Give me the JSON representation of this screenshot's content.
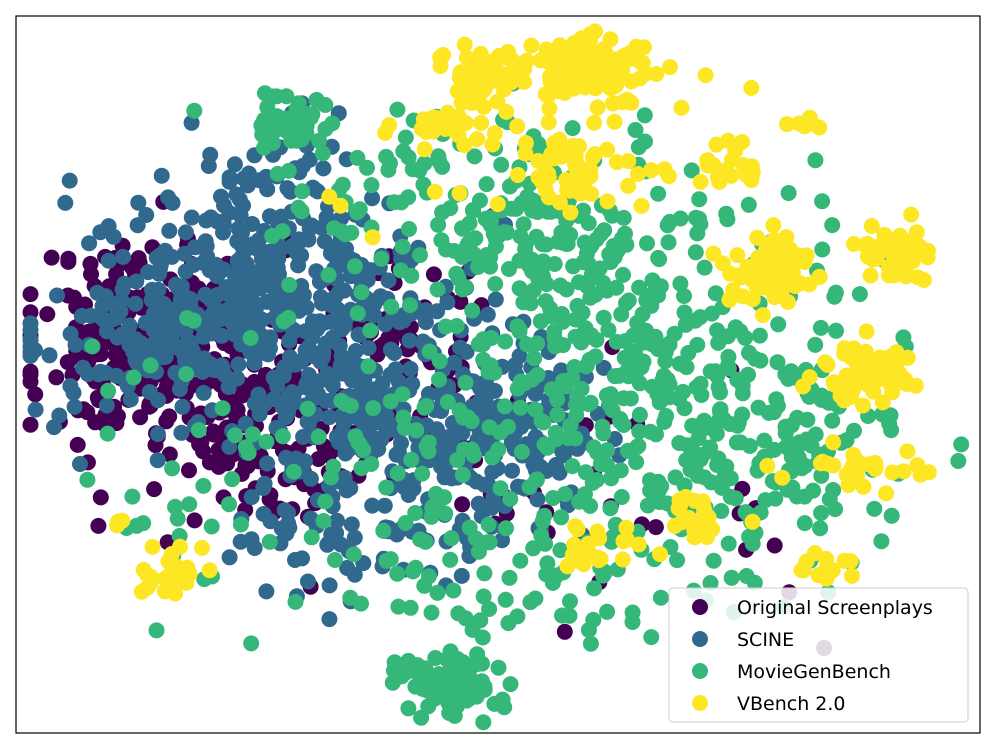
{
  "chart_data": {
    "type": "scatter",
    "title": "",
    "xlabel": "",
    "ylabel": "",
    "axes_ticks": false,
    "grid": false,
    "legend_position": "lower-right",
    "xlim": [
      0,
      100
    ],
    "ylim": [
      0,
      100
    ],
    "series": [
      {
        "name": "Original Screenplays",
        "color": "#440154",
        "clusters": [
          {
            "cx": 14,
            "cy": 55,
            "sx": 6,
            "sy": 7,
            "n": 230,
            "seed": 11
          },
          {
            "cx": 26,
            "cy": 42,
            "sx": 7,
            "sy": 7,
            "n": 150,
            "seed": 12
          },
          {
            "cx": 38,
            "cy": 54,
            "sx": 6,
            "sy": 6,
            "n": 60,
            "seed": 13
          },
          {
            "cx": 58,
            "cy": 40,
            "sx": 10,
            "sy": 8,
            "n": 25,
            "seed": 14
          },
          {
            "cx": 70,
            "cy": 30,
            "sx": 12,
            "sy": 8,
            "n": 15,
            "seed": 15
          }
        ]
      },
      {
        "name": "SCINE",
        "color": "#31688e",
        "clusters": [
          {
            "cx": 26,
            "cy": 60,
            "sx": 10,
            "sy": 8,
            "n": 420,
            "seed": 21
          },
          {
            "cx": 35,
            "cy": 45,
            "sx": 6,
            "sy": 9,
            "n": 160,
            "seed": 22
          },
          {
            "cx": 50,
            "cy": 42,
            "sx": 5,
            "sy": 6,
            "n": 180,
            "seed": 23
          },
          {
            "cx": 12,
            "cy": 52,
            "sx": 5,
            "sy": 6,
            "n": 70,
            "seed": 24
          },
          {
            "cx": 36,
            "cy": 27,
            "sx": 7,
            "sy": 4,
            "n": 60,
            "seed": 25
          },
          {
            "cx": 28,
            "cy": 80,
            "sx": 4,
            "sy": 4,
            "n": 30,
            "seed": 26
          }
        ]
      },
      {
        "name": "MovieGenBench",
        "color": "#35b779",
        "clusters": [
          {
            "cx": 62,
            "cy": 48,
            "sx": 13,
            "sy": 13,
            "n": 420,
            "seed": 31
          },
          {
            "cx": 56,
            "cy": 70,
            "sx": 8,
            "sy": 6,
            "n": 110,
            "seed": 32
          },
          {
            "cx": 42,
            "cy": 75,
            "sx": 8,
            "sy": 6,
            "n": 80,
            "seed": 33
          },
          {
            "cx": 28,
            "cy": 85,
            "sx": 2,
            "sy": 2.2,
            "n": 45,
            "seed": 34
          },
          {
            "cx": 45,
            "cy": 7,
            "sx": 2.8,
            "sy": 2.2,
            "n": 90,
            "seed": 35
          },
          {
            "cx": 79,
            "cy": 42,
            "sx": 7,
            "sy": 10,
            "n": 90,
            "seed": 36
          },
          {
            "cx": 52,
            "cy": 22,
            "sx": 8,
            "sy": 5,
            "n": 70,
            "seed": 37
          },
          {
            "cx": 24,
            "cy": 40,
            "sx": 10,
            "sy": 10,
            "n": 60,
            "seed": 38
          }
        ]
      },
      {
        "name": "VBench 2.0",
        "color": "#fde725",
        "clusters": [
          {
            "cx": 60,
            "cy": 93,
            "sx": 3,
            "sy": 2,
            "n": 110,
            "seed": 41
          },
          {
            "cx": 48,
            "cy": 92,
            "sx": 2.5,
            "sy": 2,
            "n": 60,
            "seed": 42
          },
          {
            "cx": 78,
            "cy": 65,
            "sx": 2.5,
            "sy": 2.5,
            "n": 80,
            "seed": 43
          },
          {
            "cx": 88,
            "cy": 50,
            "sx": 2.5,
            "sy": 2.5,
            "n": 70,
            "seed": 44
          },
          {
            "cx": 91,
            "cy": 67,
            "sx": 2,
            "sy": 2,
            "n": 40,
            "seed": 45
          },
          {
            "cx": 58,
            "cy": 79,
            "sx": 2.2,
            "sy": 2,
            "n": 40,
            "seed": 46
          },
          {
            "cx": 70,
            "cy": 30,
            "sx": 2,
            "sy": 1.6,
            "n": 25,
            "seed": 47
          },
          {
            "cx": 60,
            "cy": 26,
            "sx": 2,
            "sy": 1.4,
            "n": 25,
            "seed": 48
          },
          {
            "cx": 16,
            "cy": 22,
            "sx": 2,
            "sy": 1.6,
            "n": 25,
            "seed": 49
          },
          {
            "cx": 88,
            "cy": 37,
            "sx": 3.5,
            "sy": 1.5,
            "n": 30,
            "seed": 50
          },
          {
            "cx": 84,
            "cy": 23,
            "sx": 2,
            "sy": 1.5,
            "n": 12,
            "seed": 51
          },
          {
            "cx": 82,
            "cy": 85,
            "sx": 0.8,
            "sy": 0.5,
            "n": 6,
            "seed": 52
          },
          {
            "cx": 45,
            "cy": 85,
            "sx": 2,
            "sy": 1.5,
            "n": 20,
            "seed": 53
          },
          {
            "cx": 55,
            "cy": 82,
            "sx": 10,
            "sy": 7,
            "n": 45,
            "seed": 54
          },
          {
            "cx": 74,
            "cy": 79,
            "sx": 2,
            "sy": 1.5,
            "n": 20,
            "seed": 55
          },
          {
            "cx": 11,
            "cy": 29,
            "sx": 0.5,
            "sy": 0.4,
            "n": 3,
            "seed": 56
          }
        ]
      }
    ]
  }
}
